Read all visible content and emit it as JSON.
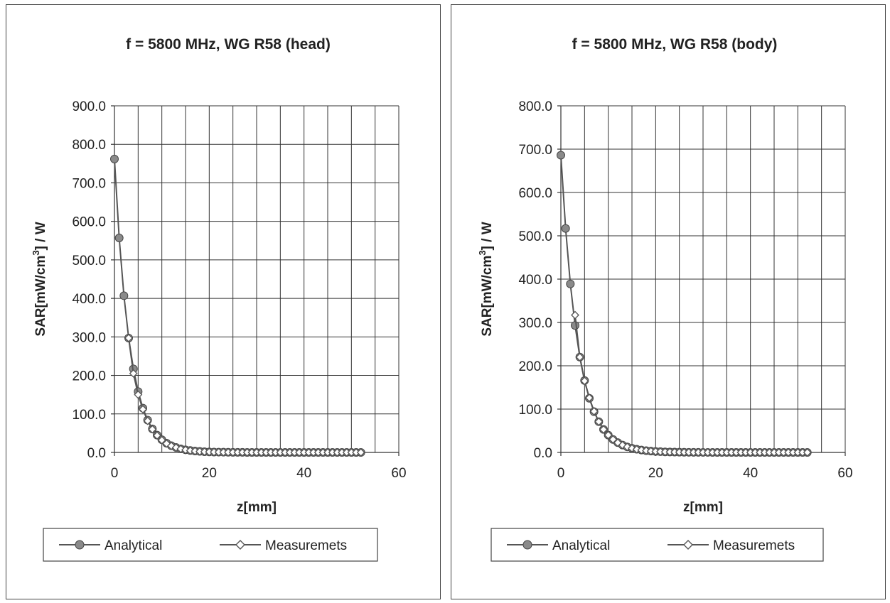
{
  "chart_data": [
    {
      "type": "line",
      "title": "f = 5800 MHz, WG R58 (head)",
      "xlabel": "z[mm]",
      "ylabel": "SAR[mW/cm3] / W",
      "xlim": [
        0,
        60
      ],
      "ylim": [
        0,
        900
      ],
      "xticks": [
        "0",
        "20",
        "40",
        "60"
      ],
      "yticks": [
        "0.0",
        "100.0",
        "200.0",
        "300.0",
        "400.0",
        "500.0",
        "600.0",
        "700.0",
        "800.0",
        "900.0"
      ],
      "grid": true,
      "legend": "bottom",
      "series": [
        {
          "name": "Analytical",
          "marker": "circle",
          "x": [
            0,
            1,
            2,
            3,
            4,
            5,
            6,
            7,
            8,
            9,
            10,
            11,
            12,
            13,
            14,
            15,
            16,
            17,
            18,
            19,
            20,
            21,
            22,
            23,
            24,
            25,
            26,
            27,
            28,
            29,
            30,
            31,
            32,
            33,
            34,
            35,
            36,
            37,
            38,
            39,
            40,
            41,
            42,
            43,
            44,
            45,
            46,
            47,
            48,
            49,
            50,
            51,
            52
          ],
          "y": [
            762,
            557,
            407,
            297,
            217,
            158,
            115,
            84,
            61,
            45,
            33,
            24,
            17.5,
            12.8,
            9.3,
            6.8,
            5,
            3.6,
            2.7,
            1.9,
            1.4,
            1,
            0.8,
            0.6,
            0.4,
            0.3,
            0.2,
            0.2,
            0.1,
            0.1,
            0,
            0,
            0,
            0,
            0,
            0,
            0,
            0,
            0,
            0,
            0,
            0,
            0,
            0,
            0,
            0,
            0,
            0,
            0,
            0,
            0,
            0,
            0
          ]
        },
        {
          "name": "Measuremets",
          "marker": "diamond",
          "x": [
            3,
            4,
            5,
            6,
            7,
            8,
            9,
            10,
            11,
            12,
            13,
            14,
            15,
            16,
            17,
            18,
            19,
            20,
            21,
            22,
            23,
            24,
            25,
            26,
            27,
            28,
            29,
            30,
            31,
            32,
            33,
            34,
            35,
            36,
            37,
            38,
            39,
            40,
            41,
            42,
            43,
            44,
            45,
            46,
            47,
            48,
            49,
            50,
            51,
            52
          ],
          "y": [
            297,
            205,
            150,
            112,
            82,
            60,
            44,
            32,
            23,
            17,
            12.5,
            9,
            6.5,
            4.8,
            3.5,
            2.6,
            1.9,
            1.4,
            1,
            0.8,
            0.6,
            0.4,
            0.3,
            0.2,
            0.2,
            0.1,
            0.1,
            0,
            0,
            0,
            0,
            0,
            0,
            0,
            0,
            0,
            0,
            0,
            0,
            0,
            0,
            0,
            0,
            0,
            0,
            0,
            0,
            0,
            0,
            0
          ]
        }
      ]
    },
    {
      "type": "line",
      "title": "f = 5800 MHz, WG R58 (body)",
      "xlabel": "z[mm]",
      "ylabel": "SAR[mW/cm3] / W",
      "xlim": [
        0,
        60
      ],
      "ylim": [
        0,
        800
      ],
      "xticks": [
        "0",
        "20",
        "40",
        "60"
      ],
      "yticks": [
        "0.0",
        "100.0",
        "200.0",
        "300.0",
        "400.0",
        "500.0",
        "600.0",
        "700.0",
        "800.0"
      ],
      "grid": true,
      "legend": "bottom",
      "series": [
        {
          "name": "Analytical",
          "marker": "circle",
          "x": [
            0,
            1,
            2,
            3,
            4,
            5,
            6,
            7,
            8,
            9,
            10,
            11,
            12,
            13,
            14,
            15,
            16,
            17,
            18,
            19,
            20,
            21,
            22,
            23,
            24,
            25,
            26,
            27,
            28,
            29,
            30,
            31,
            32,
            33,
            34,
            35,
            36,
            37,
            38,
            39,
            40,
            41,
            42,
            43,
            44,
            45,
            46,
            47,
            48,
            49,
            50,
            51,
            52
          ],
          "y": [
            686,
            517,
            389,
            293,
            220,
            166,
            125,
            94,
            71,
            53,
            40,
            30,
            22.7,
            17,
            12.8,
            9.7,
            7.3,
            5.5,
            4.1,
            3.1,
            2.3,
            1.8,
            1.3,
            1,
            0.8,
            0.6,
            0.4,
            0.3,
            0.2,
            0.2,
            0.1,
            0.1,
            0,
            0,
            0,
            0,
            0,
            0,
            0,
            0,
            0,
            0,
            0,
            0,
            0,
            0,
            0,
            0,
            0,
            0,
            0,
            0,
            0
          ]
        },
        {
          "name": "Measuremets",
          "marker": "diamond",
          "x": [
            3,
            4,
            5,
            6,
            7,
            8,
            9,
            10,
            11,
            12,
            13,
            14,
            15,
            16,
            17,
            18,
            19,
            20,
            21,
            22,
            23,
            24,
            25,
            26,
            27,
            28,
            29,
            30,
            31,
            32,
            33,
            34,
            35,
            36,
            37,
            38,
            39,
            40,
            41,
            42,
            43,
            44,
            45,
            46,
            47,
            48,
            49,
            50,
            51,
            52
          ],
          "y": [
            317,
            220,
            165,
            126,
            95,
            71,
            53,
            40,
            30,
            22.5,
            17,
            12.8,
            9.6,
            7.2,
            5.4,
            4.1,
            3.1,
            2.3,
            1.8,
            1.3,
            1,
            0.8,
            0.6,
            0.4,
            0.3,
            0.2,
            0.2,
            0.1,
            0.1,
            0,
            0,
            0,
            0,
            0,
            0,
            0,
            0,
            0,
            0,
            0,
            0,
            0,
            0,
            0,
            0,
            0,
            0,
            0,
            0,
            0
          ]
        }
      ]
    }
  ]
}
